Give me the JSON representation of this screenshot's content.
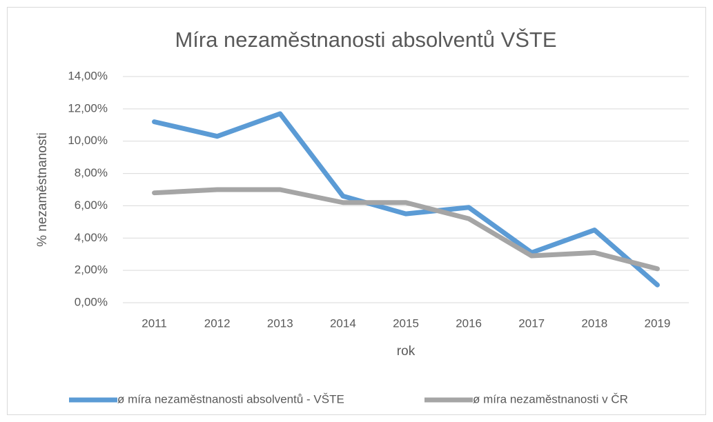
{
  "chart_data": {
    "type": "line",
    "title": "Míra nezaměstnanosti absolventů VŠTE",
    "x_label": "rok",
    "y_label": "% nezaměstnanosti",
    "categories": [
      "2011",
      "2012",
      "2013",
      "2014",
      "2015",
      "2016",
      "2017",
      "2018",
      "2019"
    ],
    "series": [
      {
        "name": "ø míra nezaměstnanosti absolventů - VŠTE",
        "color": "#5b9bd5",
        "values": [
          11.2,
          10.3,
          11.7,
          6.6,
          5.5,
          5.9,
          3.1,
          4.5,
          1.1
        ]
      },
      {
        "name": "ø míra nezaměstnanosti v ČR",
        "color": "#a5a5a5",
        "values": [
          6.8,
          7.0,
          7.0,
          6.2,
          6.2,
          5.2,
          2.9,
          3.1,
          2.1
        ]
      }
    ],
    "ylim": [
      0,
      14
    ],
    "yticks": [
      {
        "value": 0,
        "label": "0,00%"
      },
      {
        "value": 2,
        "label": "2,00%"
      },
      {
        "value": 4,
        "label": "4,00%"
      },
      {
        "value": 6,
        "label": "6,00%"
      },
      {
        "value": 8,
        "label": "8,00%"
      },
      {
        "value": 10,
        "label": "10,00%"
      },
      {
        "value": 12,
        "label": "12,00%"
      },
      {
        "value": 14,
        "label": "14,00%"
      }
    ],
    "grid": true,
    "legend": "bottom"
  }
}
